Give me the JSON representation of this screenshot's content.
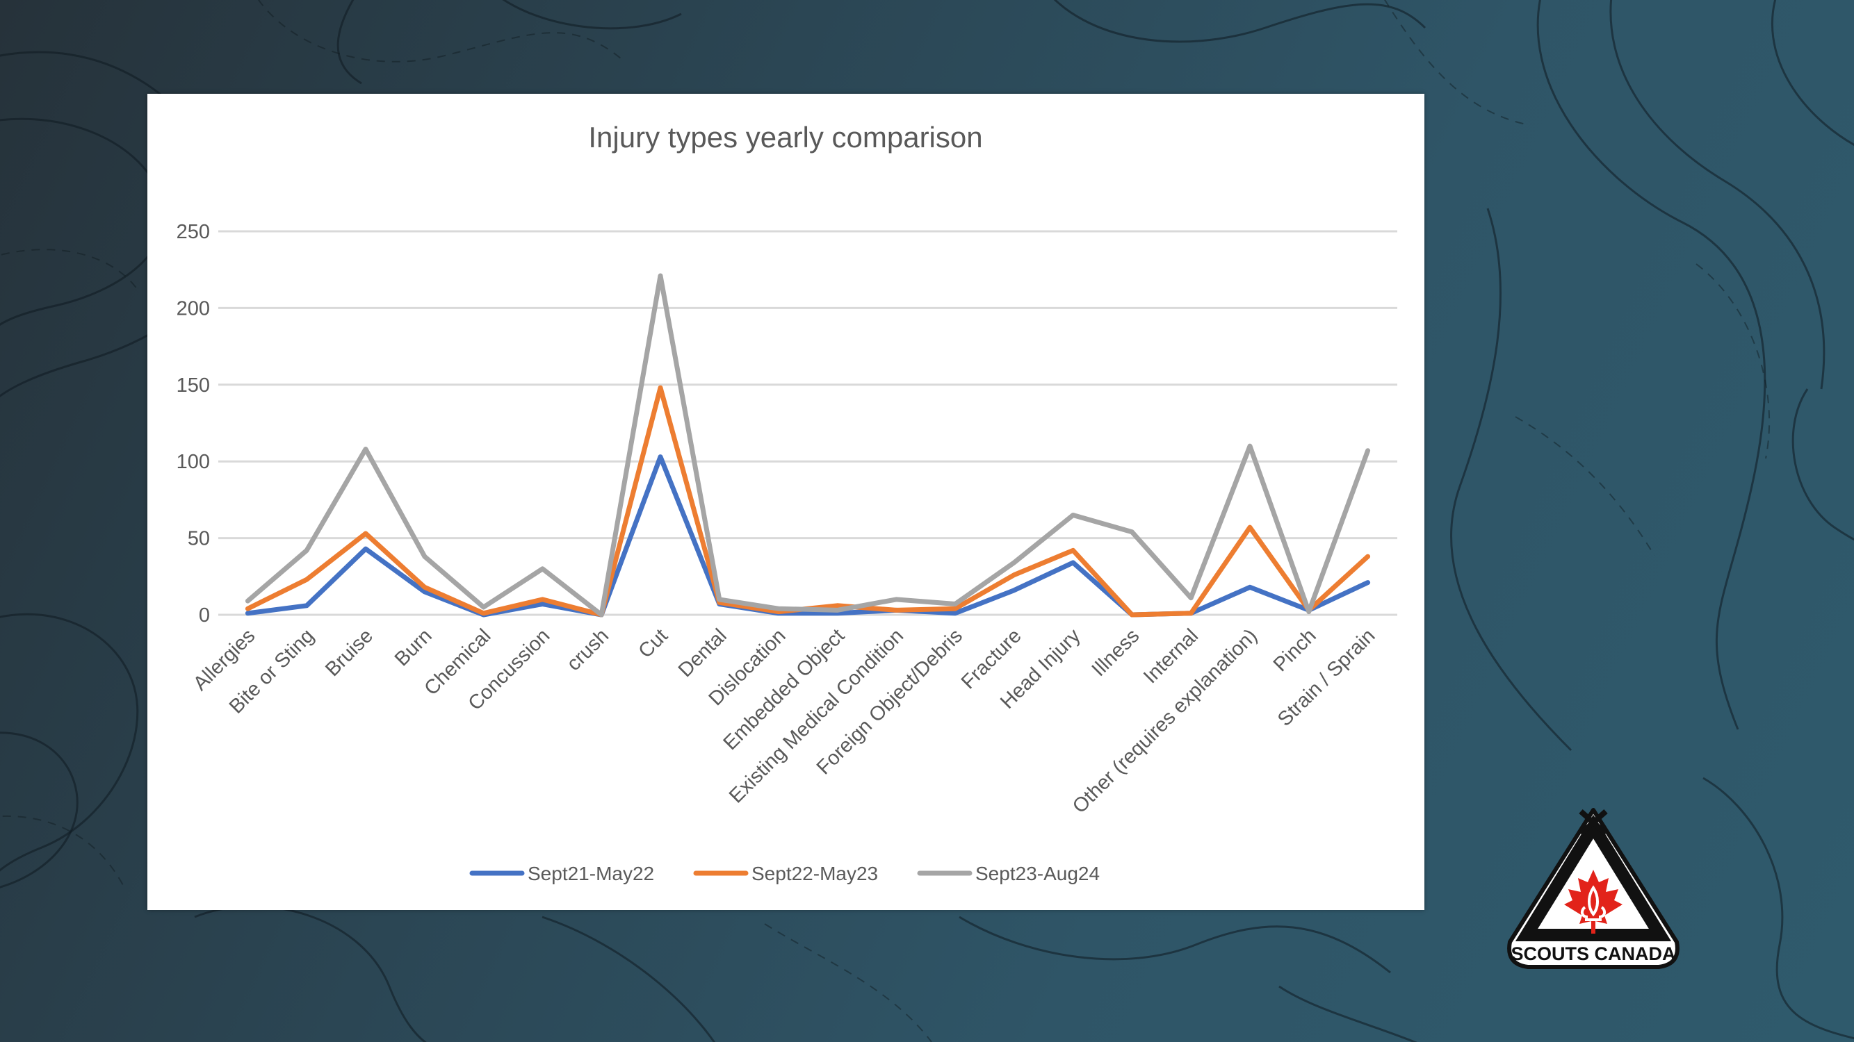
{
  "colors": {
    "series_1": "#4472c4",
    "series_2": "#ed7d31",
    "series_3": "#a5a5a5",
    "gridline": "#d9d9d9",
    "axis_text": "#595959",
    "logo_red": "#e2231a"
  },
  "logo": {
    "text": "SCOUTS CANADA",
    "icon": "scouts-canada-emblem-icon"
  },
  "chart_data": {
    "type": "line",
    "title": "Injury types yearly comparison",
    "xlabel": "",
    "ylabel": "",
    "ylim": [
      0,
      250
    ],
    "yticks": [
      0,
      50,
      100,
      150,
      200,
      250
    ],
    "grid": true,
    "legend_position": "bottom",
    "categories": [
      "Allergies",
      "Bite or Sting",
      "Bruise",
      "Burn",
      "Chemical",
      "Concussion",
      "crush",
      "Cut",
      "Dental",
      "Dislocation",
      "Embedded Object",
      "Existing Medical Condition",
      "Foreign Object/Debris",
      "Fracture",
      "Head Injury",
      "Illness",
      "Internal",
      "Other (requires explanation)",
      "Pinch",
      "Strain / Sprain"
    ],
    "series": [
      {
        "name": "Sept21-May22",
        "values": [
          1,
          6,
          43,
          15,
          0,
          7,
          0,
          103,
          7,
          1,
          1,
          3,
          1,
          16,
          34,
          0,
          1,
          18,
          3,
          21
        ]
      },
      {
        "name": "Sept22-May23",
        "values": [
          4,
          23,
          53,
          18,
          1,
          10,
          0,
          148,
          8,
          2,
          6,
          3,
          4,
          26,
          42,
          0,
          1,
          57,
          3,
          38
        ]
      },
      {
        "name": "Sept23-Aug24",
        "values": [
          9,
          42,
          108,
          38,
          5,
          30,
          0,
          221,
          10,
          4,
          3,
          10,
          7,
          34,
          65,
          54,
          11,
          110,
          2,
          107
        ]
      }
    ]
  }
}
